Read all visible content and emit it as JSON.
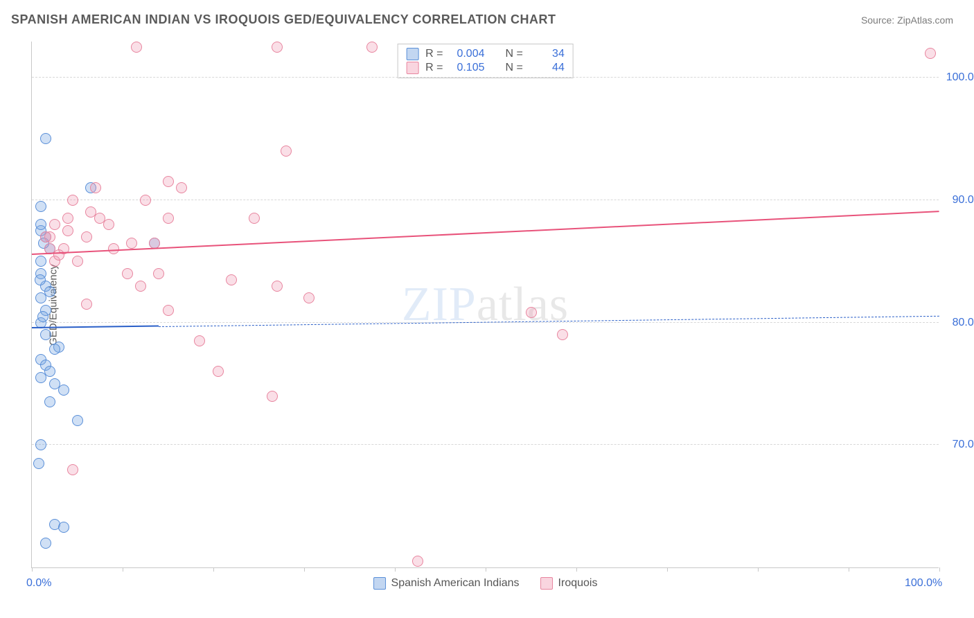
{
  "header": {
    "title": "SPANISH AMERICAN INDIAN VS IROQUOIS GED/EQUIVALENCY CORRELATION CHART",
    "source": "Source: ZipAtlas.com"
  },
  "chart": {
    "type": "scatter",
    "y_axis_title": "GED/Equivalency",
    "xlim": [
      0,
      100
    ],
    "ylim": [
      60,
      103
    ],
    "background_color": "#ffffff",
    "grid_color": "#d8d8d8",
    "axis_color": "#c8c8c8",
    "tick_label_color": "#3a6fd8",
    "y_ticks": [
      {
        "value": 70,
        "label": "70.0%"
      },
      {
        "value": 80,
        "label": "80.0%"
      },
      {
        "value": 90,
        "label": "90.0%"
      },
      {
        "value": 100,
        "label": "100.0%"
      }
    ],
    "x_ticks_major": [
      0,
      10,
      20,
      30,
      40,
      50,
      60,
      70,
      80,
      90,
      100
    ],
    "x_tick_labels": [
      {
        "value": 0,
        "label": "0.0%"
      },
      {
        "value": 100,
        "label": "100.0%"
      }
    ],
    "watermark": {
      "prefix": "ZIP",
      "suffix": "atlas"
    },
    "series": [
      {
        "name": "Spanish American Indians",
        "color_fill": "rgba(120,165,225,0.35)",
        "color_stroke": "#5a8fd8",
        "trend_color": "#2a5fc8",
        "R": "0.004",
        "N": "34",
        "trend": {
          "y_at_x0": 79.5,
          "y_at_x100": 80.5,
          "solid_until_x": 14
        },
        "points": [
          [
            1.5,
            95.0
          ],
          [
            1.0,
            89.5
          ],
          [
            6.5,
            91.0
          ],
          [
            1.0,
            87.5
          ],
          [
            1.5,
            87.0
          ],
          [
            2.0,
            86.0
          ],
          [
            1.0,
            85.0
          ],
          [
            1.0,
            84.0
          ],
          [
            1.5,
            83.0
          ],
          [
            2.0,
            82.5
          ],
          [
            1.0,
            82.0
          ],
          [
            1.5,
            81.0
          ],
          [
            13.5,
            86.5
          ],
          [
            1.0,
            80.0
          ],
          [
            1.5,
            79.0
          ],
          [
            3.0,
            78.0
          ],
          [
            2.5,
            77.8
          ],
          [
            1.0,
            77.0
          ],
          [
            1.5,
            76.5
          ],
          [
            2.0,
            76.0
          ],
          [
            1.0,
            75.5
          ],
          [
            2.5,
            75.0
          ],
          [
            3.5,
            74.5
          ],
          [
            2.0,
            73.5
          ],
          [
            5.0,
            72.0
          ],
          [
            1.0,
            70.0
          ],
          [
            0.8,
            68.5
          ],
          [
            2.5,
            63.5
          ],
          [
            3.5,
            63.3
          ],
          [
            1.5,
            62.0
          ],
          [
            1.0,
            88.0
          ],
          [
            1.3,
            86.5
          ],
          [
            0.9,
            83.5
          ],
          [
            1.2,
            80.5
          ]
        ]
      },
      {
        "name": "Iroquois",
        "color_fill": "rgba(240,150,175,0.30)",
        "color_stroke": "#e8859f",
        "trend_color": "#e8527a",
        "R": "0.105",
        "N": "44",
        "trend": {
          "y_at_x0": 85.5,
          "y_at_x100": 89.0,
          "solid_until_x": 100
        },
        "points": [
          [
            11.5,
            102.5
          ],
          [
            27.0,
            102.5
          ],
          [
            37.5,
            102.5
          ],
          [
            99.0,
            102.0
          ],
          [
            28.0,
            94.0
          ],
          [
            15.0,
            91.5
          ],
          [
            7.0,
            91.0
          ],
          [
            4.5,
            90.0
          ],
          [
            12.5,
            90.0
          ],
          [
            6.5,
            89.0
          ],
          [
            8.5,
            88.0
          ],
          [
            15.0,
            88.5
          ],
          [
            24.5,
            88.5
          ],
          [
            4.0,
            87.5
          ],
          [
            6.0,
            87.0
          ],
          [
            2.0,
            87.0
          ],
          [
            11.0,
            86.5
          ],
          [
            9.0,
            86.0
          ],
          [
            3.5,
            86.0
          ],
          [
            13.5,
            86.5
          ],
          [
            2.5,
            85.0
          ],
          [
            5.0,
            85.0
          ],
          [
            10.5,
            84.0
          ],
          [
            14.0,
            84.0
          ],
          [
            22.0,
            83.5
          ],
          [
            27.0,
            83.0
          ],
          [
            30.5,
            82.0
          ],
          [
            15.0,
            81.0
          ],
          [
            55.0,
            80.8
          ],
          [
            58.5,
            79.0
          ],
          [
            18.5,
            78.5
          ],
          [
            20.5,
            76.0
          ],
          [
            26.5,
            74.0
          ],
          [
            4.5,
            68.0
          ],
          [
            42.5,
            60.5
          ],
          [
            1.5,
            87.0
          ],
          [
            2.0,
            86.0
          ],
          [
            3.0,
            85.5
          ],
          [
            16.5,
            91.0
          ],
          [
            7.5,
            88.5
          ],
          [
            12.0,
            83.0
          ],
          [
            6.0,
            81.5
          ],
          [
            4.0,
            88.5
          ],
          [
            2.5,
            88.0
          ]
        ]
      }
    ],
    "legend": {
      "series1_label": "Spanish American Indians",
      "series2_label": "Iroquois"
    },
    "stats_labels": {
      "R": "R =",
      "N": "N ="
    }
  }
}
